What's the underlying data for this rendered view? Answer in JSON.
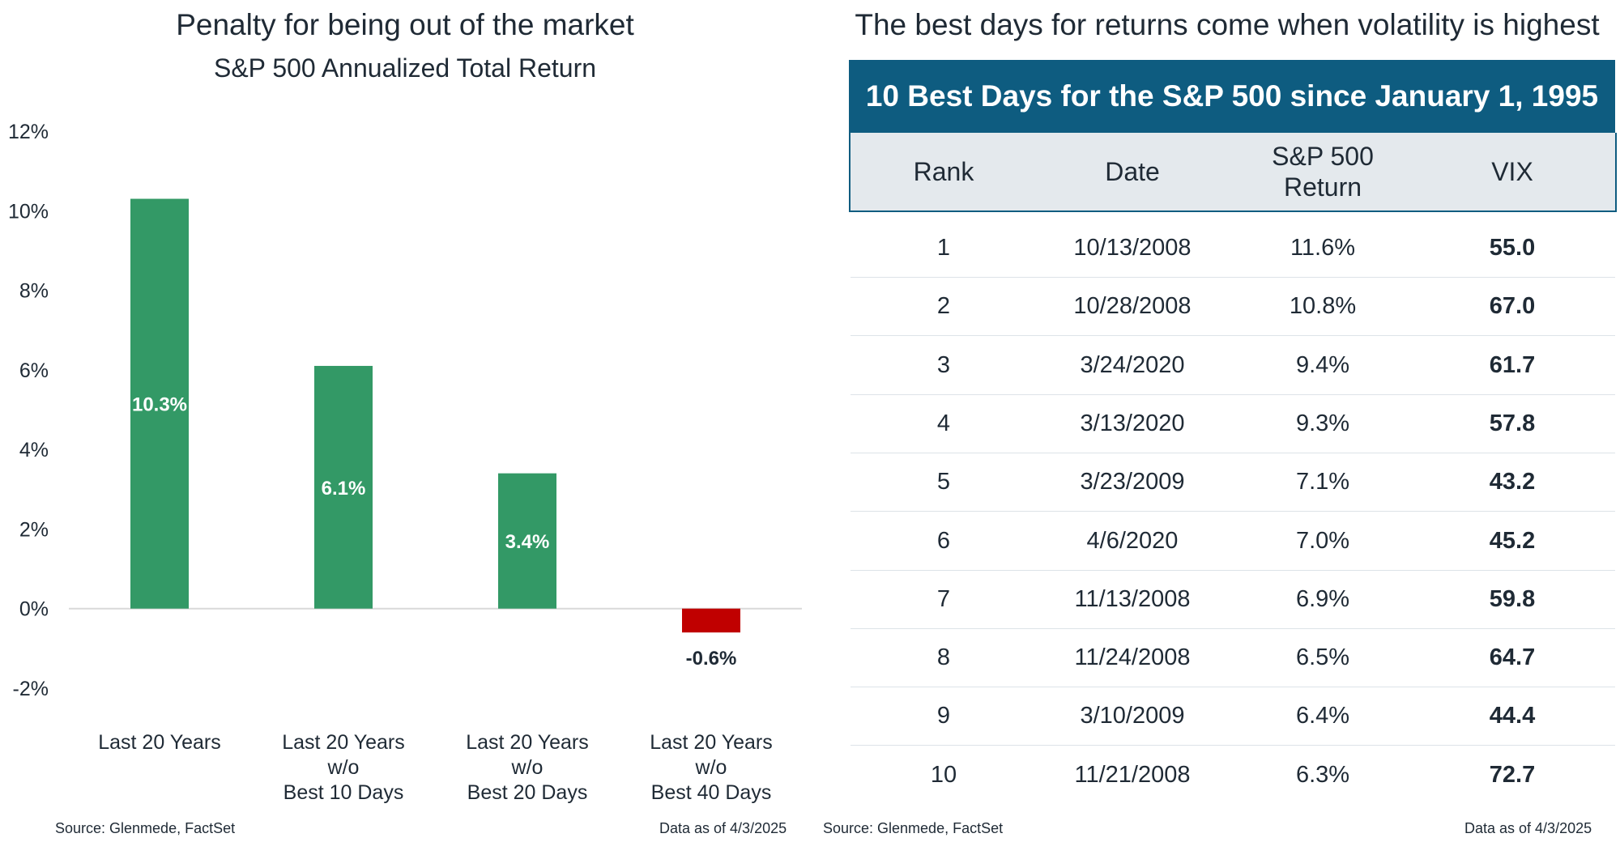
{
  "left_panel": {
    "title": "Penalty for being out of the market",
    "subtitle": "S&P 500 Annualized Total Return",
    "source": "Source: Glenmede, FactSet",
    "asof": "Data as of 4/3/2025"
  },
  "right_panel": {
    "title": "The best days for returns come when volatility is highest",
    "table_title": "10 Best Days for the S&P 500 since January 1, 1995",
    "headers": {
      "rank": "Rank",
      "date": "Date",
      "ret1": "S&P 500",
      "ret2": "Return",
      "vix": "VIX"
    },
    "source": "Source: Glenmede, FactSet",
    "asof": "Data as of 4/3/2025"
  },
  "chart_data": [
    {
      "type": "bar",
      "title": "Penalty for being out of the market",
      "subtitle": "S&P 500 Annualized Total Return",
      "categories": [
        [
          "Last 20 Years"
        ],
        [
          "Last 20 Years",
          "w/o",
          "Best 10 Days"
        ],
        [
          "Last 20 Years",
          "w/o",
          "Best 20 Days"
        ],
        [
          "Last 20 Years",
          "w/o",
          "Best 40 Days"
        ]
      ],
      "values": [
        10.3,
        6.1,
        3.4,
        -0.6
      ],
      "data_labels": [
        "10.3%",
        "6.1%",
        "3.4%",
        "-0.6%"
      ],
      "ylim": [
        -2,
        12
      ],
      "yticks": [
        12,
        10,
        8,
        6,
        4,
        2,
        0,
        -2
      ],
      "ytick_labels": [
        "12%",
        "10%",
        "8%",
        "6%",
        "4%",
        "2%",
        "0%",
        "-2%"
      ],
      "colors": {
        "positive": "#339966",
        "negative": "#c00000"
      },
      "grid": false
    },
    {
      "type": "table",
      "title": "10 Best Days for the S&P 500 since January 1, 1995",
      "columns": [
        "Rank",
        "Date",
        "S&P 500 Return",
        "VIX"
      ],
      "rows": [
        [
          "1",
          "10/13/2008",
          "11.6%",
          "55.0"
        ],
        [
          "2",
          "10/28/2008",
          "10.8%",
          "67.0"
        ],
        [
          "3",
          "3/24/2020",
          "9.4%",
          "61.7"
        ],
        [
          "4",
          "3/13/2020",
          "9.3%",
          "57.8"
        ],
        [
          "5",
          "3/23/2009",
          "7.1%",
          "43.2"
        ],
        [
          "6",
          "4/6/2020",
          "7.0%",
          "45.2"
        ],
        [
          "7",
          "11/13/2008",
          "6.9%",
          "59.8"
        ],
        [
          "8",
          "11/24/2008",
          "6.5%",
          "64.7"
        ],
        [
          "9",
          "3/10/2009",
          "6.4%",
          "44.4"
        ],
        [
          "10",
          "11/21/2008",
          "6.3%",
          "72.7"
        ]
      ],
      "colors": {
        "header_band": "#0e5c80",
        "column_header_bg": "#e4e9ed"
      }
    }
  ]
}
